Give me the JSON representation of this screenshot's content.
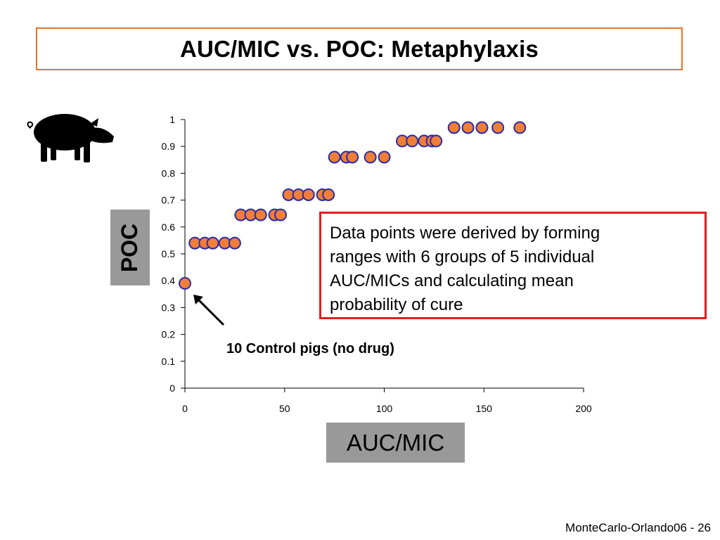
{
  "slide": {
    "title": "AUC/MIC vs. POC: Metaphylaxis",
    "footer": "MonteCarlo-Orlando06 - 26",
    "title_border_color": "#e8742a"
  },
  "pig_icon": {
    "icon": "pig-silhouette-icon"
  },
  "annotations": {
    "note_lines": [
      "Data points were derived by forming",
      "ranges with  6 groups of 5 individual",
      "AUC/MICs and calculating mean",
      "probability of cure"
    ],
    "note_border_color": "#e31d1d",
    "control_label": "10 Control pigs (no drug)"
  },
  "chart_data": {
    "type": "scatter",
    "xlabel": "AUC/MIC",
    "ylabel": "POC",
    "xlim": [
      0,
      200
    ],
    "ylim": [
      0,
      1
    ],
    "x_ticks": [
      "0",
      "50",
      "100",
      "150",
      "200"
    ],
    "y_ticks": [
      "0",
      "0.1",
      "0.2",
      "0.3",
      "0.4",
      "0.5",
      "0.6",
      "0.7",
      "0.8",
      "0.9",
      "1"
    ],
    "grid": false,
    "marker_fill": "#f07e36",
    "marker_edge": "#2c2ca8",
    "points": [
      {
        "x": 0,
        "y": 0.39
      },
      {
        "x": 5,
        "y": 0.54
      },
      {
        "x": 10,
        "y": 0.54
      },
      {
        "x": 14,
        "y": 0.54
      },
      {
        "x": 20,
        "y": 0.54
      },
      {
        "x": 25,
        "y": 0.54
      },
      {
        "x": 28,
        "y": 0.645
      },
      {
        "x": 33,
        "y": 0.645
      },
      {
        "x": 38,
        "y": 0.645
      },
      {
        "x": 45,
        "y": 0.645
      },
      {
        "x": 48,
        "y": 0.645
      },
      {
        "x": 52,
        "y": 0.72
      },
      {
        "x": 57,
        "y": 0.72
      },
      {
        "x": 62,
        "y": 0.72
      },
      {
        "x": 69,
        "y": 0.72
      },
      {
        "x": 72,
        "y": 0.72
      },
      {
        "x": 75,
        "y": 0.86
      },
      {
        "x": 81,
        "y": 0.86
      },
      {
        "x": 84,
        "y": 0.86
      },
      {
        "x": 93,
        "y": 0.86
      },
      {
        "x": 100,
        "y": 0.86
      },
      {
        "x": 109,
        "y": 0.92
      },
      {
        "x": 114,
        "y": 0.92
      },
      {
        "x": 120,
        "y": 0.92
      },
      {
        "x": 124,
        "y": 0.92
      },
      {
        "x": 126,
        "y": 0.92
      },
      {
        "x": 135,
        "y": 0.97
      },
      {
        "x": 142,
        "y": 0.97
      },
      {
        "x": 149,
        "y": 0.97
      },
      {
        "x": 157,
        "y": 0.97
      },
      {
        "x": 168,
        "y": 0.97
      }
    ]
  }
}
